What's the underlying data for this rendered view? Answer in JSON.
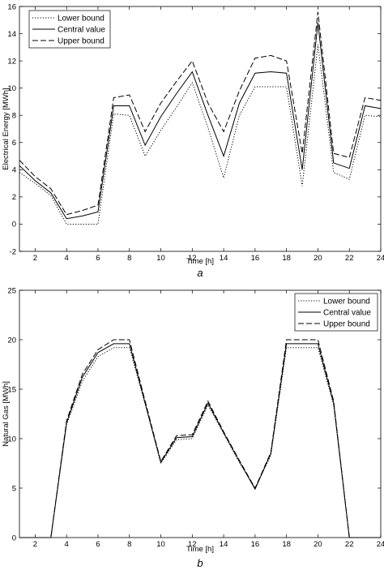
{
  "chart_data": [
    {
      "type": "line",
      "panel_label": "a",
      "xlabel": "Time [h]",
      "ylabel": "Electrical Energy [MWh]",
      "xlim": [
        1,
        24
      ],
      "ylim": [
        -2,
        16
      ],
      "xticks": [
        2,
        4,
        6,
        8,
        10,
        12,
        14,
        16,
        18,
        20,
        22,
        24
      ],
      "yticks": [
        -2,
        0,
        2,
        4,
        6,
        8,
        10,
        12,
        14,
        16
      ],
      "legend_position": "top-left",
      "x": [
        1,
        2,
        3,
        4,
        5,
        6,
        7,
        8,
        9,
        10,
        11,
        12,
        13,
        14,
        15,
        16,
        17,
        18,
        19,
        20,
        21,
        22,
        23,
        24
      ],
      "series": [
        {
          "name": "Lower bound",
          "style": "dotted",
          "values": [
            3.8,
            3.0,
            2.1,
            0.0,
            0.0,
            0.0,
            8.1,
            8.0,
            5.0,
            6.9,
            8.6,
            10.4,
            7.1,
            3.4,
            8.0,
            10.1,
            10.1,
            10.1,
            2.8,
            13.2,
            3.8,
            3.3,
            8.0,
            7.9
          ]
        },
        {
          "name": "Central value",
          "style": "solid",
          "values": [
            4.3,
            3.2,
            2.3,
            0.4,
            0.6,
            0.9,
            8.7,
            8.7,
            5.8,
            7.9,
            9.6,
            11.2,
            8.0,
            5.0,
            8.9,
            11.1,
            11.2,
            11.1,
            4.0,
            14.8,
            4.5,
            4.1,
            8.7,
            8.5
          ]
        },
        {
          "name": "Upper bound",
          "style": "dashed",
          "values": [
            4.7,
            3.5,
            2.6,
            0.7,
            1.0,
            1.4,
            9.3,
            9.5,
            6.8,
            8.9,
            10.5,
            12.0,
            8.9,
            6.8,
            9.8,
            12.2,
            12.4,
            12.0,
            5.2,
            15.6,
            5.2,
            4.9,
            9.3,
            9.1
          ]
        }
      ]
    },
    {
      "type": "line",
      "panel_label": "b",
      "xlabel": "Time [h]",
      "ylabel": "Natural Gas [MWh]",
      "xlim": [
        1,
        24
      ],
      "ylim": [
        0,
        25
      ],
      "xticks": [
        2,
        4,
        6,
        8,
        10,
        12,
        14,
        16,
        18,
        20,
        22,
        24
      ],
      "yticks": [
        0,
        5,
        10,
        15,
        20,
        25
      ],
      "legend_position": "top-right",
      "x": [
        1,
        2,
        3,
        4,
        5,
        6,
        7,
        8,
        9,
        10,
        11,
        12,
        13,
        14,
        15,
        16,
        17,
        18,
        19,
        20,
        21,
        22,
        23,
        24
      ],
      "series": [
        {
          "name": "Lower bound",
          "style": "dotted",
          "values": [
            0,
            0,
            0,
            11.4,
            15.8,
            18.3,
            19.2,
            19.2,
            13.5,
            7.5,
            9.9,
            10.0,
            13.4,
            10.5,
            7.6,
            5.0,
            8.3,
            19.2,
            19.2,
            19.2,
            13.4,
            0,
            0,
            0
          ]
        },
        {
          "name": "Central value",
          "style": "solid",
          "values": [
            0,
            0,
            0,
            11.6,
            16.2,
            18.7,
            19.6,
            19.6,
            13.6,
            7.6,
            10.1,
            10.2,
            13.6,
            10.6,
            7.7,
            4.9,
            8.5,
            19.6,
            19.6,
            19.6,
            13.6,
            0,
            0,
            0
          ]
        },
        {
          "name": "Upper bound",
          "style": "dashed",
          "values": [
            0,
            0,
            0,
            11.8,
            16.5,
            19.0,
            20.0,
            20.0,
            13.8,
            7.7,
            10.3,
            10.4,
            13.8,
            10.7,
            7.8,
            5.0,
            8.6,
            20.0,
            20.0,
            20.0,
            13.8,
            0,
            0,
            0
          ]
        }
      ]
    }
  ]
}
